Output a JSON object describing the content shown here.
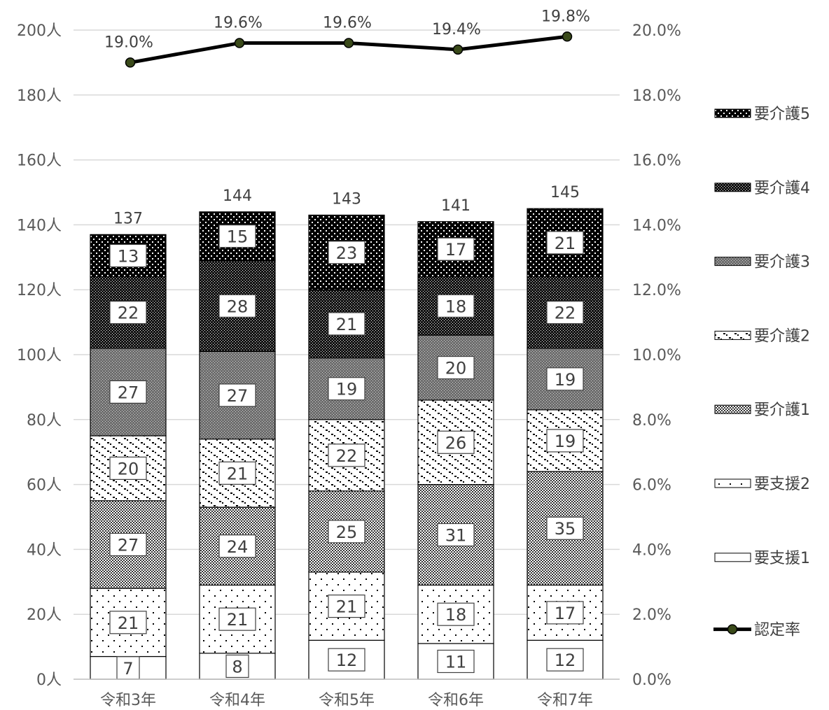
{
  "chart_data": {
    "type": "bar",
    "stacked": true,
    "categories": [
      "令和3年",
      "令和4年",
      "令和5年",
      "令和6年",
      "令和7年"
    ],
    "series": [
      {
        "name": "要支援1",
        "values": [
          7,
          8,
          12,
          11,
          12
        ],
        "pattern": "blank"
      },
      {
        "name": "要支援2",
        "values": [
          21,
          21,
          21,
          18,
          17
        ],
        "pattern": "sparse-dots"
      },
      {
        "name": "要介護1",
        "values": [
          27,
          24,
          25,
          31,
          35
        ],
        "pattern": "fine-check"
      },
      {
        "name": "要介護2",
        "values": [
          20,
          21,
          22,
          26,
          19
        ],
        "pattern": "dashes"
      },
      {
        "name": "要介護3",
        "values": [
          27,
          27,
          19,
          20,
          19
        ],
        "pattern": "dense-grey"
      },
      {
        "name": "要介護4",
        "values": [
          22,
          28,
          21,
          18,
          22
        ],
        "pattern": "dark-check"
      },
      {
        "name": "要介護5",
        "values": [
          13,
          15,
          23,
          17,
          21
        ],
        "pattern": "black-dots"
      }
    ],
    "totals": [
      "137",
      "144",
      "143",
      "141",
      "145"
    ],
    "line_series": {
      "name": "認定率",
      "values": [
        19.0,
        19.6,
        19.6,
        19.4,
        19.8
      ],
      "labels": [
        "19.0%",
        "19.6%",
        "19.6%",
        "19.4%",
        "19.8%"
      ],
      "color": "#000000",
      "marker_fill": "#3a4a1a"
    },
    "y_left": {
      "min": 0,
      "max": 200,
      "step": 20,
      "ticks": [
        "0人",
        "20人",
        "40人",
        "60人",
        "80人",
        "100人",
        "120人",
        "140人",
        "160人",
        "180人",
        "200人"
      ]
    },
    "y_right": {
      "min": 0,
      "max": 20,
      "step": 2,
      "ticks": [
        "0.0%",
        "2.0%",
        "4.0%",
        "6.0%",
        "8.0%",
        "10.0%",
        "12.0%",
        "14.0%",
        "16.0%",
        "18.0%",
        "20.0%"
      ]
    },
    "grid": true,
    "legend_position": "right",
    "legend_order": [
      "要介護5",
      "要介護4",
      "要介護3",
      "要介護2",
      "要介護1",
      "要支援2",
      "要支援1",
      "認定率"
    ]
  }
}
